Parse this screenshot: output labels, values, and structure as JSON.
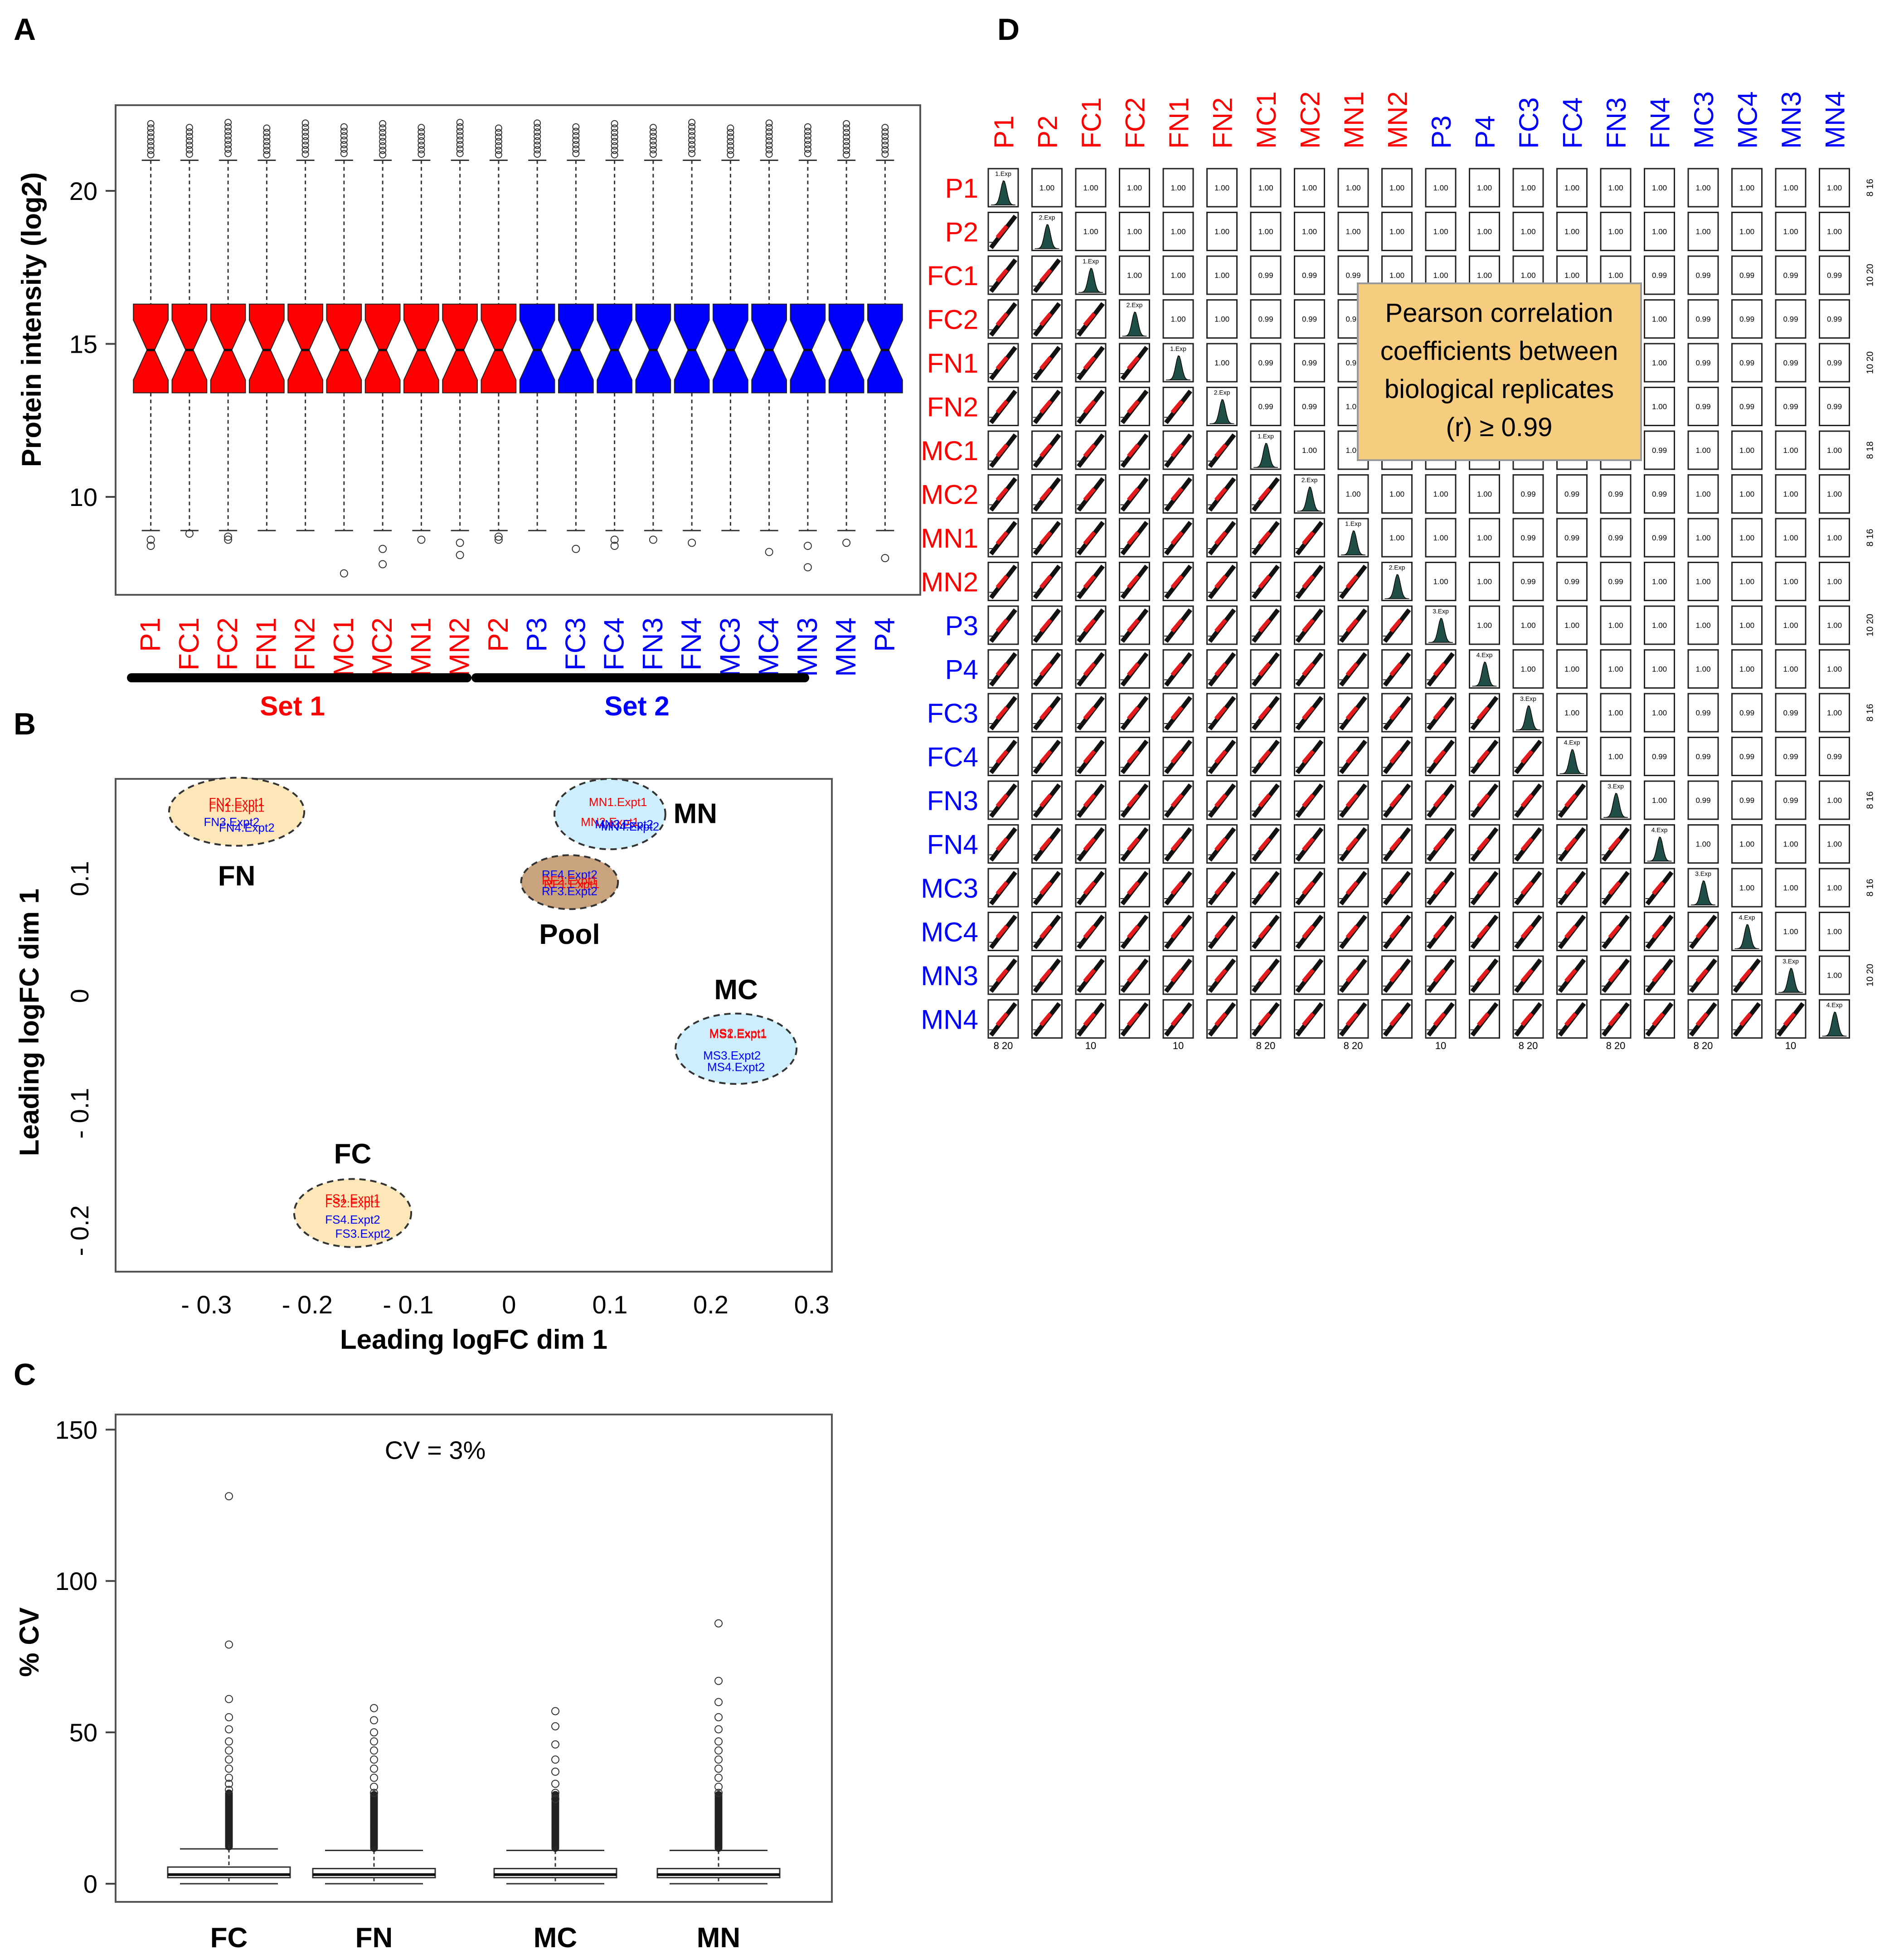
{
  "colors": {
    "set1": "#ff0000",
    "set2": "#0000ff",
    "ellipse_tan": "#fde7b8",
    "ellipse_blue": "#cdeefc",
    "ellipse_brown": "#c9a27e",
    "annot_bg": "#f6cd7e",
    "density": "#1f4e47"
  },
  "panel_labels": [
    "A",
    "B",
    "C",
    "D"
  ],
  "panel_a": {
    "chart_data": {
      "type": "box",
      "ylabel": "Protein intensity (log2)",
      "ylim": [
        6.8,
        22.8
      ],
      "yticks": [
        10,
        15,
        20
      ],
      "samples": [
        "P1",
        "FC1",
        "FC2",
        "FN1",
        "FN2",
        "MC1",
        "MC2",
        "MN1",
        "MN2",
        "P2",
        "P3",
        "FC3",
        "FC4",
        "FN3",
        "FN4",
        "MC3",
        "MC4",
        "MN3",
        "MN4",
        "P4"
      ],
      "set_of_sample": [
        1,
        1,
        1,
        1,
        1,
        1,
        1,
        1,
        1,
        1,
        2,
        2,
        2,
        2,
        2,
        2,
        2,
        2,
        2,
        2
      ],
      "box": {
        "q1": 13.4,
        "median": 14.8,
        "q3": 16.3,
        "whisker_low": 8.9,
        "whisker_high": 21.0
      },
      "low_outliers": [
        [
          8.6,
          8.4
        ],
        [
          8.8
        ],
        [
          8.7,
          8.6
        ],
        [],
        [],
        [
          7.5
        ],
        [
          8.3,
          7.8
        ],
        [
          8.6
        ],
        [
          8.5,
          8.1
        ],
        [
          8.7,
          8.6
        ],
        [],
        [
          8.3
        ],
        [
          8.6,
          8.4
        ],
        [
          8.6
        ],
        [
          8.5
        ],
        [],
        [
          8.2
        ],
        [
          8.4,
          7.7
        ],
        [
          8.5
        ],
        [
          8.0
        ]
      ],
      "sets": [
        {
          "name": "Set 1"
        },
        {
          "name": "Set 2"
        }
      ]
    }
  },
  "panel_b": {
    "chart_data": {
      "type": "scatter",
      "xlabel": "Leading logFC dim 1",
      "ylabel": "Leading logFC dim 1",
      "xlim": [
        -0.39,
        0.32
      ],
      "ylim": [
        -0.235,
        0.185
      ],
      "xticks": [
        -0.3,
        -0.2,
        -0.1,
        0,
        0.1,
        0.2,
        0.3
      ],
      "xtick_labels": [
        "- 0.3",
        "- 0.2",
        "- 0.1",
        "0",
        "0.1",
        "0.2",
        "0.3"
      ],
      "yticks": [
        -0.2,
        -0.1,
        0,
        0.1
      ],
      "ytick_labels": [
        "- 0.2",
        "- 0.1",
        "0",
        "0.1"
      ],
      "groups": [
        {
          "name": "FN",
          "x": -0.27,
          "y": 0.157,
          "rx": 0.067,
          "ry": 0.029,
          "color": "tan",
          "points": [
            {
              "label": "FN2.Expt1",
              "dx": 0,
              "dy": 0.008,
              "set": 1
            },
            {
              "label": "FN1.Expt1",
              "dx": 0,
              "dy": 0.003,
              "set": 1
            },
            {
              "label": "FN3.Expt2",
              "dx": -0.005,
              "dy": -0.009,
              "set": 2
            },
            {
              "label": "FN4.Expt2",
              "dx": 0.01,
              "dy": -0.014,
              "set": 2
            }
          ]
        },
        {
          "name": "MN",
          "x": 0.1,
          "y": 0.155,
          "rx": 0.055,
          "ry": 0.03,
          "color": "blue",
          "points": [
            {
              "label": "MN1.Expt1",
              "dx": 0.008,
              "dy": 0.01,
              "set": 1
            },
            {
              "label": "MN2.Expt1",
              "dx": 0,
              "dy": -0.007,
              "set": 1
            },
            {
              "label": "MN3.Expt2",
              "dx": 0.014,
              "dy": -0.009,
              "set": 2
            },
            {
              "label": "MN4.Expt2",
              "dx": 0.02,
              "dy": -0.011,
              "set": 2
            }
          ]
        },
        {
          "name": "Pool",
          "x": 0.06,
          "y": 0.097,
          "rx": 0.048,
          "ry": 0.023,
          "color": "brown",
          "points": [
            {
              "label": "RF4.Expt2",
              "dx": 0,
              "dy": 0.006,
              "set": 2
            },
            {
              "label": "RF2.Expt1",
              "dx": 0,
              "dy": 0.001,
              "set": 1
            },
            {
              "label": "RF1.Expt1",
              "dx": 0.002,
              "dy": -0.002,
              "set": 1
            },
            {
              "label": "RF3.Expt2",
              "dx": 0,
              "dy": -0.008,
              "set": 2
            }
          ]
        },
        {
          "name": "MC",
          "x": 0.225,
          "y": -0.045,
          "rx": 0.06,
          "ry": 0.03,
          "color": "blue",
          "points": [
            {
              "label": "MS2.Expt1",
              "dx": 0.002,
              "dy": 0.013,
              "set": 1
            },
            {
              "label": "MS1.Expt1",
              "dx": 0.002,
              "dy": 0.012,
              "set": 1
            },
            {
              "label": "MS3.Expt2",
              "dx": -0.004,
              "dy": -0.006,
              "set": 2
            },
            {
              "label": "MS4.Expt2",
              "dx": 0.0,
              "dy": -0.016,
              "set": 2
            }
          ]
        },
        {
          "name": "FC",
          "x": -0.155,
          "y": -0.185,
          "rx": 0.058,
          "ry": 0.029,
          "color": "tan",
          "points": [
            {
              "label": "FS1.Expt1",
              "dx": 0,
              "dy": 0.012,
              "set": 1
            },
            {
              "label": "FS2.Expt1",
              "dx": 0,
              "dy": 0.008,
              "set": 1
            },
            {
              "label": "FS4.Expt2",
              "dx": 0,
              "dy": -0.006,
              "set": 2
            },
            {
              "label": "FS3.Expt2",
              "dx": 0.01,
              "dy": -0.018,
              "set": 2
            }
          ]
        }
      ]
    }
  },
  "panel_c": {
    "chart_data": {
      "type": "box",
      "ylabel": "% CV",
      "ylim": [
        -6,
        155
      ],
      "yticks": [
        0,
        50,
        100,
        150
      ],
      "annotation": "CV = 3%",
      "categories": [
        "FC",
        "FN",
        "MC",
        "MN"
      ],
      "boxes": [
        {
          "q1": 2,
          "median": 3,
          "q3": 5.5,
          "whisker_low": 0,
          "whisker_high": 11.5,
          "outliers": [
            128,
            79,
            61,
            55,
            51,
            47,
            44,
            41,
            38,
            35,
            33,
            31
          ]
        },
        {
          "q1": 2,
          "median": 3,
          "q3": 5,
          "whisker_low": 0,
          "whisker_high": 11,
          "outliers": [
            58,
            54,
            50,
            47,
            44,
            41,
            38,
            35,
            32,
            30
          ]
        },
        {
          "q1": 2,
          "median": 3,
          "q3": 5,
          "whisker_low": 0,
          "whisker_high": 11,
          "outliers": [
            57,
            52,
            46,
            41,
            37,
            33,
            30,
            28
          ]
        },
        {
          "q1": 2,
          "median": 3,
          "q3": 5,
          "whisker_low": 0,
          "whisker_high": 11,
          "outliers": [
            86,
            67,
            60,
            55,
            51,
            47,
            44,
            41,
            38,
            35,
            32,
            30
          ]
        }
      ]
    }
  },
  "panel_d": {
    "chart_data": {
      "type": "pairs-matrix",
      "samples": [
        "P1",
        "P2",
        "FC1",
        "FC2",
        "FN1",
        "FN2",
        "MC1",
        "MC2",
        "MN1",
        "MN2",
        "P3",
        "P4",
        "FC3",
        "FC4",
        "FN3",
        "FN4",
        "MC3",
        "MC4",
        "MN3",
        "MN4"
      ],
      "set_of_sample": [
        1,
        1,
        1,
        1,
        1,
        1,
        1,
        1,
        1,
        1,
        2,
        2,
        2,
        2,
        2,
        2,
        2,
        2,
        2,
        2
      ],
      "diag_labels": [
        "1.Exp",
        "2.Exp",
        "1.Exp",
        "2.Exp",
        "1.Exp",
        "2.Exp",
        "1.Exp",
        "2.Exp",
        "1.Exp",
        "2.Exp",
        "3.Exp",
        "4.Exp",
        "3.Exp",
        "4.Exp",
        "3.Exp",
        "4.Exp",
        "3.Exp",
        "4.Exp",
        "3.Exp",
        "4.Exp"
      ],
      "pairs_099": [
        [
          2,
          6
        ],
        [
          2,
          7
        ],
        [
          2,
          8
        ],
        [
          2,
          15
        ],
        [
          2,
          16
        ],
        [
          2,
          17
        ],
        [
          2,
          18
        ],
        [
          2,
          19
        ],
        [
          3,
          6
        ],
        [
          3,
          7
        ],
        [
          3,
          8
        ],
        [
          3,
          16
        ],
        [
          3,
          17
        ],
        [
          3,
          18
        ],
        [
          3,
          19
        ],
        [
          4,
          6
        ],
        [
          4,
          7
        ],
        [
          4,
          8
        ],
        [
          4,
          16
        ],
        [
          4,
          17
        ],
        [
          4,
          18
        ],
        [
          4,
          19
        ],
        [
          5,
          6
        ],
        [
          5,
          7
        ],
        [
          5,
          16
        ],
        [
          5,
          17
        ],
        [
          5,
          18
        ],
        [
          5,
          19
        ],
        [
          6,
          12
        ],
        [
          6,
          13
        ],
        [
          6,
          14
        ],
        [
          6,
          15
        ],
        [
          7,
          12
        ],
        [
          7,
          13
        ],
        [
          7,
          14
        ],
        [
          7,
          15
        ],
        [
          8,
          12
        ],
        [
          8,
          13
        ],
        [
          8,
          14
        ],
        [
          8,
          15
        ],
        [
          9,
          12
        ],
        [
          9,
          13
        ],
        [
          9,
          14
        ],
        [
          12,
          16
        ],
        [
          12,
          17
        ],
        [
          12,
          18
        ],
        [
          13,
          15
        ],
        [
          13,
          16
        ],
        [
          13,
          17
        ],
        [
          13,
          18
        ],
        [
          13,
          19
        ],
        [
          14,
          16
        ],
        [
          14,
          17
        ],
        [
          14,
          18
        ]
      ],
      "bottom_axis_labels": [
        "8  20",
        "10",
        "10",
        "8  20",
        "8  20",
        "10",
        "8  20",
        "8  20",
        "8  20",
        "10"
      ],
      "right_axis_labels": [
        "8  16",
        "10  20",
        "10  20",
        "8  18",
        "8  16",
        "10  20",
        "8  16",
        "8  16",
        "8  16",
        "10  20"
      ],
      "annotation": [
        "Pearson correlation",
        "coefficients  between",
        "biological replicates",
        "(r)  ≥ 0.99"
      ]
    }
  }
}
